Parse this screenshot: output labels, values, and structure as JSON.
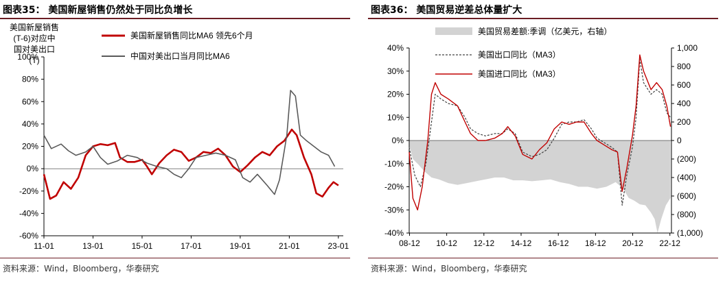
{
  "charts": [
    {
      "figure_label": "图表35：",
      "title": "美国新屋销售仍然处于同比负增长",
      "source": "资料来源：Wind，Bloomberg，华泰研究",
      "axis_label_left": [
        "美国新屋销售",
        "(T-6)对应中",
        "国对美出口",
        "(T)"
      ]
    },
    {
      "figure_label": "图表36：",
      "title": "美国贸易逆差总体量扩大",
      "source": "资料来源：Wind，Bloomberg，华泰研究"
    }
  ],
  "chart_data": [
    {
      "type": "line",
      "yticks": [
        "100%",
        "80%",
        "60%",
        "40%",
        "20%",
        "0%",
        "-20%",
        "-40%",
        "-60%"
      ],
      "xticks": [
        "11-01",
        "13-01",
        "15-01",
        "17-01",
        "19-01",
        "21-01",
        "23-01"
      ],
      "ylim": [
        -60,
        100
      ],
      "xlim": [
        2011.0,
        2023.2
      ],
      "legend_placement": "top",
      "colors": {
        "series1": "#c00000",
        "series2": "#595959"
      },
      "series": [
        {
          "name": "美国新屋销售同比MA6 领先6个月",
          "points": [
            [
              2011.0,
              -5
            ],
            [
              2011.25,
              -27
            ],
            [
              2011.5,
              -24
            ],
            [
              2011.8,
              -12
            ],
            [
              2012.1,
              -18
            ],
            [
              2012.4,
              -8
            ],
            [
              2012.7,
              12
            ],
            [
              2013.0,
              20
            ],
            [
              2013.3,
              22
            ],
            [
              2013.6,
              21
            ],
            [
              2013.9,
              23
            ],
            [
              2014.1,
              10
            ],
            [
              2014.4,
              6
            ],
            [
              2014.7,
              6
            ],
            [
              2015.0,
              8
            ],
            [
              2015.2,
              2
            ],
            [
              2015.4,
              -5
            ],
            [
              2015.7,
              5
            ],
            [
              2016.0,
              12
            ],
            [
              2016.3,
              17
            ],
            [
              2016.6,
              15
            ],
            [
              2016.9,
              7
            ],
            [
              2017.2,
              10
            ],
            [
              2017.5,
              15
            ],
            [
              2017.8,
              14
            ],
            [
              2018.1,
              18
            ],
            [
              2018.4,
              12
            ],
            [
              2018.7,
              2
            ],
            [
              2019.0,
              -3
            ],
            [
              2019.3,
              3
            ],
            [
              2019.6,
              10
            ],
            [
              2019.9,
              15
            ],
            [
              2020.2,
              12
            ],
            [
              2020.5,
              20
            ],
            [
              2020.8,
              25
            ],
            [
              2021.1,
              35
            ],
            [
              2021.3,
              30
            ],
            [
              2021.6,
              10
            ],
            [
              2021.9,
              -5
            ],
            [
              2022.1,
              -22
            ],
            [
              2022.35,
              -25
            ],
            [
              2022.6,
              -17
            ],
            [
              2022.8,
              -12
            ],
            [
              2023.0,
              -15
            ]
          ]
        },
        {
          "name": "中国对美出口当月同比MA6",
          "points": [
            [
              2011.0,
              30
            ],
            [
              2011.3,
              18
            ],
            [
              2011.7,
              22
            ],
            [
              2012.0,
              16
            ],
            [
              2012.3,
              12
            ],
            [
              2012.7,
              15
            ],
            [
              2013.0,
              20
            ],
            [
              2013.3,
              10
            ],
            [
              2013.6,
              4
            ],
            [
              2014.0,
              7
            ],
            [
              2014.4,
              12
            ],
            [
              2014.8,
              10
            ],
            [
              2015.2,
              5
            ],
            [
              2015.6,
              2
            ],
            [
              2016.0,
              0
            ],
            [
              2016.3,
              -5
            ],
            [
              2016.6,
              -8
            ],
            [
              2016.9,
              0
            ],
            [
              2017.2,
              10
            ],
            [
              2017.6,
              12
            ],
            [
              2018.0,
              14
            ],
            [
              2018.4,
              12
            ],
            [
              2018.8,
              8
            ],
            [
              2019.1,
              -8
            ],
            [
              2019.4,
              -12
            ],
            [
              2019.7,
              -5
            ],
            [
              2020.1,
              -15
            ],
            [
              2020.4,
              -23
            ],
            [
              2020.6,
              -10
            ],
            [
              2020.9,
              30
            ],
            [
              2021.05,
              70
            ],
            [
              2021.25,
              65
            ],
            [
              2021.45,
              30
            ],
            [
              2021.7,
              25
            ],
            [
              2022.0,
              20
            ],
            [
              2022.3,
              15
            ],
            [
              2022.6,
              12
            ],
            [
              2022.85,
              2
            ]
          ]
        }
      ]
    },
    {
      "type": "line",
      "yticks_left": [
        "40%",
        "30%",
        "20%",
        "10%",
        "0%",
        "-10%",
        "-20%",
        "-30%",
        "-40%"
      ],
      "yticks_right": [
        "1,000",
        "800",
        "600",
        "400",
        "200",
        "0",
        "(200)",
        "(400)",
        "(600)",
        "(800)",
        "(1,000)"
      ],
      "xticks": [
        "08-12",
        "10-12",
        "12-12",
        "14-12",
        "16-12",
        "18-12",
        "20-12",
        "22-12"
      ],
      "ylim_left": [
        -40,
        40
      ],
      "ylim_right": [
        -1000,
        1000
      ],
      "xlim": [
        2008.9,
        2023.0
      ],
      "legend_placement": "top",
      "colors": {
        "area": "#d3d3d3",
        "exports": "#404040",
        "imports": "#c00000"
      },
      "series": [
        {
          "name": "美国贸易差额:季调（亿美元，右轴）",
          "type": "area",
          "axis": "right",
          "points": [
            [
              2008.9,
              -50
            ],
            [
              2009.1,
              -200
            ],
            [
              2009.4,
              -260
            ],
            [
              2009.7,
              -330
            ],
            [
              2010.1,
              -400
            ],
            [
              2010.5,
              -420
            ],
            [
              2011.0,
              -460
            ],
            [
              2011.5,
              -480
            ],
            [
              2012.0,
              -460
            ],
            [
              2012.5,
              -440
            ],
            [
              2013.0,
              -420
            ],
            [
              2013.5,
              -400
            ],
            [
              2014.0,
              -400
            ],
            [
              2014.5,
              -430
            ],
            [
              2015.0,
              -430
            ],
            [
              2015.5,
              -440
            ],
            [
              2016.0,
              -430
            ],
            [
              2016.5,
              -420
            ],
            [
              2017.0,
              -450
            ],
            [
              2017.5,
              -470
            ],
            [
              2018.0,
              -500
            ],
            [
              2018.5,
              -500
            ],
            [
              2019.0,
              -520
            ],
            [
              2019.5,
              -500
            ],
            [
              2020.0,
              -450
            ],
            [
              2020.4,
              -520
            ],
            [
              2020.7,
              -620
            ],
            [
              2021.0,
              -650
            ],
            [
              2021.3,
              -690
            ],
            [
              2021.6,
              -700
            ],
            [
              2021.9,
              -780
            ],
            [
              2022.1,
              -850
            ],
            [
              2022.25,
              -1000
            ],
            [
              2022.45,
              -850
            ],
            [
              2022.7,
              -700
            ],
            [
              2022.95,
              -620
            ]
          ]
        },
        {
          "name": "美国出口同比（MA3）",
          "axis": "left",
          "points": [
            [
              2008.9,
              -3
            ],
            [
              2009.2,
              -15
            ],
            [
              2009.5,
              -20
            ],
            [
              2009.8,
              -10
            ],
            [
              2010.1,
              8
            ],
            [
              2010.3,
              20
            ],
            [
              2010.6,
              18
            ],
            [
              2011.0,
              16
            ],
            [
              2011.5,
              15
            ],
            [
              2011.9,
              10
            ],
            [
              2012.2,
              5
            ],
            [
              2012.6,
              3
            ],
            [
              2013.0,
              2
            ],
            [
              2013.5,
              3
            ],
            [
              2013.9,
              3
            ],
            [
              2014.2,
              5
            ],
            [
              2014.6,
              3
            ],
            [
              2015.0,
              -5
            ],
            [
              2015.5,
              -7
            ],
            [
              2015.9,
              -6
            ],
            [
              2016.3,
              -4
            ],
            [
              2016.7,
              1
            ],
            [
              2017.1,
              7
            ],
            [
              2017.5,
              8
            ],
            [
              2017.9,
              8
            ],
            [
              2018.3,
              9
            ],
            [
              2018.7,
              5
            ],
            [
              2019.0,
              1
            ],
            [
              2019.4,
              -1
            ],
            [
              2019.8,
              -3
            ],
            [
              2020.1,
              -5
            ],
            [
              2020.35,
              -28
            ],
            [
              2020.6,
              -15
            ],
            [
              2020.9,
              -3
            ],
            [
              2021.1,
              10
            ],
            [
              2021.3,
              35
            ],
            [
              2021.5,
              25
            ],
            [
              2021.9,
              20
            ],
            [
              2022.2,
              22
            ],
            [
              2022.5,
              20
            ],
            [
              2022.75,
              12
            ],
            [
              2022.95,
              10
            ]
          ]
        },
        {
          "name": "美国进口同比（MA3）",
          "axis": "left",
          "points": [
            [
              2008.9,
              -5
            ],
            [
              2009.1,
              -25
            ],
            [
              2009.35,
              -30
            ],
            [
              2009.6,
              -20
            ],
            [
              2009.9,
              0
            ],
            [
              2010.1,
              20
            ],
            [
              2010.3,
              25
            ],
            [
              2010.6,
              20
            ],
            [
              2011.0,
              18
            ],
            [
              2011.5,
              15
            ],
            [
              2011.9,
              8
            ],
            [
              2012.2,
              3
            ],
            [
              2012.6,
              0
            ],
            [
              2013.0,
              0
            ],
            [
              2013.5,
              1
            ],
            [
              2013.9,
              3
            ],
            [
              2014.2,
              6
            ],
            [
              2014.6,
              2
            ],
            [
              2015.0,
              -6
            ],
            [
              2015.5,
              -8
            ],
            [
              2015.9,
              -4
            ],
            [
              2016.3,
              -1
            ],
            [
              2016.7,
              5
            ],
            [
              2017.1,
              8
            ],
            [
              2017.5,
              7
            ],
            [
              2017.9,
              8
            ],
            [
              2018.3,
              8
            ],
            [
              2018.7,
              3
            ],
            [
              2019.0,
              0
            ],
            [
              2019.4,
              -2
            ],
            [
              2019.8,
              -4
            ],
            [
              2020.1,
              -5
            ],
            [
              2020.35,
              -22
            ],
            [
              2020.6,
              -12
            ],
            [
              2020.9,
              2
            ],
            [
              2021.1,
              15
            ],
            [
              2021.3,
              37
            ],
            [
              2021.5,
              30
            ],
            [
              2021.9,
              22
            ],
            [
              2022.2,
              25
            ],
            [
              2022.5,
              22
            ],
            [
              2022.75,
              15
            ],
            [
              2022.95,
              6
            ]
          ]
        }
      ]
    }
  ]
}
